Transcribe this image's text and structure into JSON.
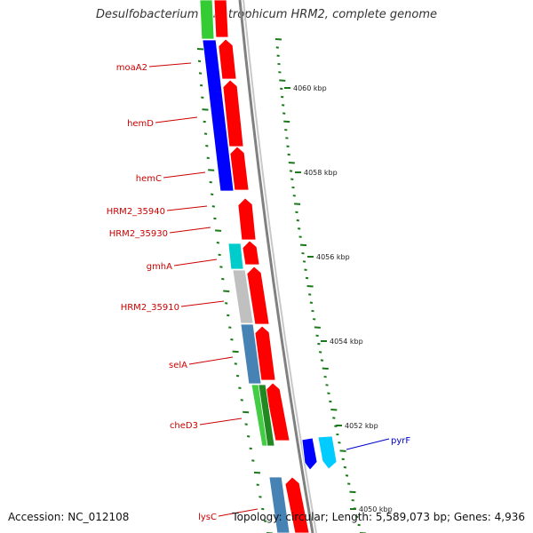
{
  "title": "Desulfobacterium autotrophicum HRM2, complete genome",
  "accession": "Accession: NC_012108",
  "topology": "Topology: circular; Length: 5,589,073 bp; Genes: 4,936",
  "colors": {
    "forward_cds": "#ff0000",
    "reverse_cds": "#0000ff",
    "label_red": "#cc0000",
    "label_blue": "#0000cc",
    "tick_green": "#1a7a1a",
    "backbone": "#808080"
  },
  "scale_labels": [
    "4060 kbp",
    "4058 kbp",
    "4056 kbp",
    "4054 kbp",
    "4052 kbp",
    "4050 kbp"
  ],
  "gene_labels": [
    {
      "text": "moaA2",
      "color": "#cc0000"
    },
    {
      "text": "hemD",
      "color": "#cc0000"
    },
    {
      "text": "hemC",
      "color": "#cc0000"
    },
    {
      "text": "HRM2_35940",
      "color": "#cc0000"
    },
    {
      "text": "HRM2_35930",
      "color": "#cc0000"
    },
    {
      "text": "gmhA",
      "color": "#cc0000"
    },
    {
      "text": "HRM2_35910",
      "color": "#cc0000"
    },
    {
      "text": "selA",
      "color": "#cc0000"
    },
    {
      "text": "cheD3",
      "color": "#cc0000"
    },
    {
      "text": "pyrF",
      "color": "#0000cc"
    },
    {
      "text": "lysC",
      "color": "#cc0000"
    }
  ]
}
